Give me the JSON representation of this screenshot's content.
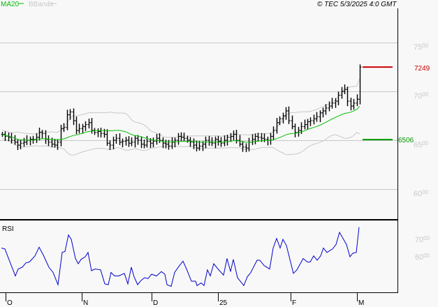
{
  "header": {
    "ma_label": "MA20",
    "bb_label": "BBands",
    "copyright": "© TEC 5/3/2025 4:0 GMT"
  },
  "colors": {
    "ma": "#00c000",
    "bbands": "#c8c8c8",
    "bars": "#000000",
    "rsi": "#0000cc",
    "last_price": "#cc0000",
    "support": "#009900",
    "grid": "#c8c8c8"
  },
  "chart_data": [
    {
      "type": "ohlc-bar",
      "title": "",
      "indicators": [
        "MA20",
        "BBands"
      ],
      "yticks": [
        "7500",
        "7000",
        "6500",
        "6000"
      ],
      "ylim": [
        5740,
        7760
      ],
      "grid": true,
      "x_ticks": [
        "O",
        "N",
        "D",
        "25",
        "F",
        "M"
      ],
      "close": [
        6560,
        6540,
        6530,
        6500,
        6480,
        6450,
        6470,
        6480,
        6500,
        6510,
        6510,
        6530,
        6580,
        6570,
        6510,
        6480,
        6460,
        6450,
        6480,
        6620,
        6630,
        6760,
        6790,
        6700,
        6600,
        6620,
        6640,
        6660,
        6680,
        6600,
        6580,
        6590,
        6570,
        6560,
        6470,
        6450,
        6500,
        6520,
        6480,
        6490,
        6500,
        6470,
        6480,
        6520,
        6500,
        6460,
        6450,
        6490,
        6470,
        6490,
        6520,
        6500,
        6470,
        6460,
        6440,
        6480,
        6500,
        6540,
        6530,
        6520,
        6500,
        6480,
        6450,
        6420,
        6440,
        6460,
        6500,
        6480,
        6470,
        6510,
        6490,
        6470,
        6500,
        6530,
        6540,
        6560,
        6500,
        6460,
        6430,
        6420,
        6480,
        6510,
        6540,
        6530,
        6520,
        6510,
        6500,
        6540,
        6600,
        6680,
        6720,
        6750,
        6800,
        6700,
        6640,
        6580,
        6600,
        6640,
        6660,
        6690,
        6700,
        6720,
        6740,
        6780,
        6800,
        6830,
        6850,
        6880,
        6900,
        6960,
        7000,
        7020,
        6900,
        6850,
        6880,
        6920,
        7249
      ],
      "last_price": {
        "value": 7249,
        "label": "7249"
      },
      "support": {
        "value": 6506,
        "label": "6506"
      }
    },
    {
      "type": "line",
      "title": "RSI",
      "yticks": [
        "70",
        "60"
      ],
      "ylim": [
        39,
        79
      ],
      "values": [
        65,
        64.5,
        49,
        53,
        54,
        56.5,
        57,
        60.5,
        65.5,
        61,
        54,
        51,
        44,
        62.5,
        63,
        72.5,
        70,
        59,
        56,
        58.5,
        60,
        62.5,
        52,
        53,
        52.5,
        44.5,
        44,
        51,
        49,
        49,
        50.5,
        44.5,
        54,
        48.5,
        44,
        46.5,
        48,
        47.5,
        50,
        49,
        51.5,
        50,
        44,
        43,
        51,
        54.5,
        57.5,
        53,
        46,
        46,
        43.5,
        45,
        43.5,
        52.5,
        49,
        56,
        53,
        49.5,
        59,
        51.5,
        58.5,
        48,
        43.5,
        48.5,
        51,
        58,
        58,
        55,
        53,
        65,
        70.5,
        65,
        70,
        66.5,
        50.5,
        52.5,
        59,
        57,
        57,
        60.5,
        58,
        60.5,
        65,
        62.5,
        64.5,
        67,
        74,
        70.5,
        67,
        60,
        62,
        62.5,
        77
      ],
      "rsi_x": [
        2,
        7,
        22,
        26,
        32,
        37,
        42,
        50,
        56,
        62,
        70,
        76,
        83,
        89,
        93,
        98,
        102,
        108,
        112,
        116,
        122,
        126,
        131,
        136,
        144,
        150,
        155,
        159,
        164,
        170,
        178,
        183,
        188,
        192,
        197,
        202,
        207,
        212,
        217,
        224,
        231,
        236,
        239,
        245,
        250,
        256,
        262,
        267,
        274,
        280,
        282,
        288,
        292,
        297,
        301,
        306,
        312,
        320,
        325,
        330,
        334,
        340,
        349,
        354,
        359,
        368,
        372,
        378,
        386,
        391,
        396,
        401,
        405,
        410,
        420,
        425,
        434,
        440,
        444,
        449,
        454,
        459,
        463,
        468,
        476,
        481,
        486,
        491,
        496,
        501,
        505,
        510,
        514
      ]
    }
  ]
}
